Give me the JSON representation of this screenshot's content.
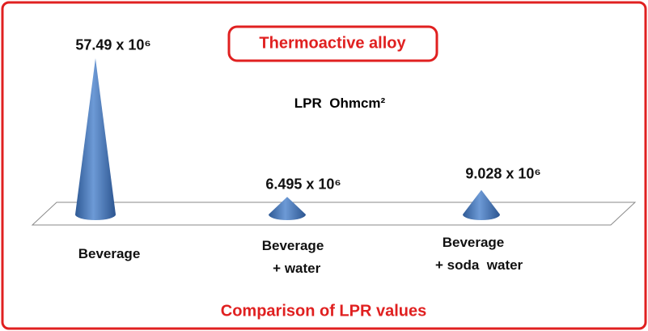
{
  "chart_data": {
    "type": "cone",
    "title": "Thermoactive alloy",
    "y_label": "LPR  Ohmcm²",
    "footer": "Comparison of LPR values",
    "categories": [
      "Beverage",
      "Beverage\n  + water",
      "Beverage\n   + soda  water"
    ],
    "values": [
      57490000,
      6495000,
      9028000
    ],
    "value_labels": [
      "57.49 x 10⁶",
      "6.495 x 10⁶",
      "9.028 x 10⁶"
    ],
    "color": "#4f7fc0"
  }
}
